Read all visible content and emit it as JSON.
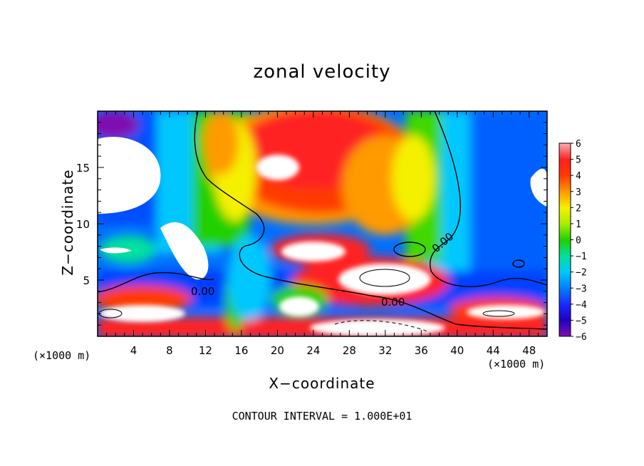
{
  "chart_data": {
    "type": "heatmap",
    "title": "zonal velocity",
    "xlabel": "X−coordinate",
    "ylabel": "Z−coordinate",
    "x_unit_left": "(×1000 m)",
    "x_unit_right": "(×1000 m)",
    "footer": "CONTOUR INTERVAL = 1.000E+01",
    "xlim": [
      0,
      50
    ],
    "ylim": [
      0,
      20
    ],
    "x_ticks": [
      "4",
      "8",
      "12",
      "16",
      "20",
      "24",
      "28",
      "32",
      "36",
      "40",
      "44",
      "48"
    ],
    "y_ticks": [
      "5",
      "10",
      "15"
    ],
    "colorbar_labels": [
      "6",
      "5",
      "4",
      "3",
      "2",
      "1",
      "0",
      "−1",
      "−2",
      "−3",
      "−4",
      "−5",
      "−6"
    ],
    "colorbar_range": [
      -6,
      6
    ],
    "contour_labels": [
      "0.00",
      "0.00",
      "0.00"
    ],
    "colors": {
      "c6": "#f7b0b0",
      "c5": "#ff2020",
      "c4": "#ff3a00",
      "c3": "#ff9a00",
      "c2": "#f5f000",
      "c1": "#a8ee00",
      "c0": "#20d000",
      "cm1": "#00e0a0",
      "cm2": "#00c8ff",
      "cm3": "#0080ff",
      "cm4": "#1a2aff",
      "cm5": "#2000c0",
      "cm6": "#8010b0"
    }
  }
}
